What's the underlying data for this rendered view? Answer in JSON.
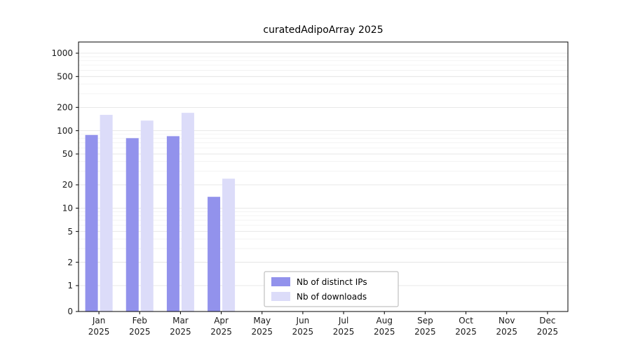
{
  "chart_data": {
    "type": "bar",
    "title": "curatedAdipoArray 2025",
    "categories": [
      "Jan 2025",
      "Feb 2025",
      "Mar 2025",
      "Apr 2025",
      "May 2025",
      "Jun 2025",
      "Jul 2025",
      "Aug 2025",
      "Sep 2025",
      "Oct 2025",
      "Nov 2025",
      "Dec 2025"
    ],
    "series": [
      {
        "name": "Nb of distinct IPs",
        "color": "#9292ec",
        "values": [
          88,
          80,
          85,
          14,
          0,
          0,
          0,
          0,
          0,
          0,
          0,
          0
        ]
      },
      {
        "name": "Nb of downloads",
        "color": "#dcdcf9",
        "values": [
          160,
          135,
          170,
          24,
          0,
          0,
          0,
          0,
          0,
          0,
          0,
          0
        ]
      }
    ],
    "y_ticks": [
      0,
      1,
      2,
      5,
      10,
      20,
      50,
      100,
      200,
      500,
      1000
    ],
    "y_tick_labels": [
      "0",
      "1",
      "2",
      "5",
      "10",
      "20",
      "50",
      "100",
      "200",
      "500",
      "1000"
    ],
    "y_scale": "log-with-zero",
    "ylim": [
      0,
      1000
    ],
    "grid": "horizontal",
    "legend_position": "bottom-center-inside",
    "colors": {
      "axis": "#000000",
      "major_grid": "#e3e3e3",
      "minor_grid": "#f0f0f0",
      "legend_border": "#b3b3b3",
      "tick_text": "#1a1a1a"
    }
  }
}
